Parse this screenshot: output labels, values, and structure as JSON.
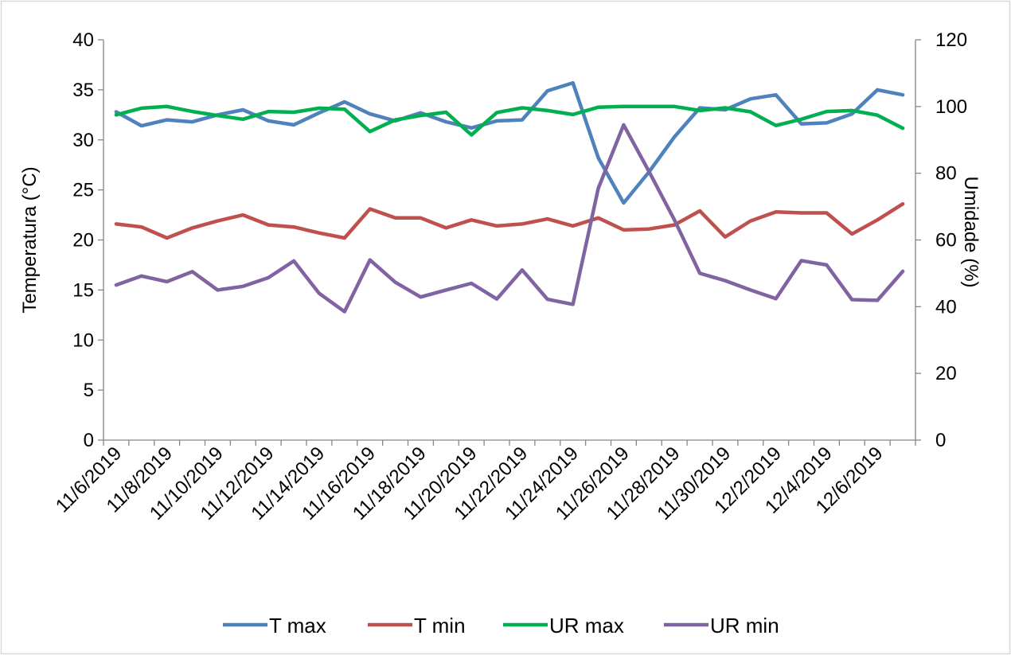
{
  "chart_data": {
    "type": "line",
    "title": "",
    "y_left": {
      "label": "Temperatura (°C)",
      "ylim": [
        0,
        40
      ],
      "ticks": [
        "0",
        "5",
        "10",
        "15",
        "20",
        "25",
        "30",
        "35",
        "40"
      ]
    },
    "y_right": {
      "label": "Umidade (%)",
      "ylim": [
        0,
        120
      ],
      "ticks": [
        "0",
        "20",
        "40",
        "60",
        "80",
        "100",
        "120"
      ]
    },
    "x_tick_labels": [
      "11/6/2019",
      "11/8/2019",
      "11/10/2019",
      "11/12/2019",
      "11/14/2019",
      "11/16/2019",
      "11/18/2019",
      "11/20/2019",
      "11/22/2019",
      "11/24/2019",
      "11/26/2019",
      "11/28/2019",
      "11/30/2019",
      "12/2/2019",
      "12/4/2019",
      "12/6/2019"
    ],
    "x": [
      "11/6/2019",
      "11/7/2019",
      "11/8/2019",
      "11/9/2019",
      "11/10/2019",
      "11/11/2019",
      "11/12/2019",
      "11/13/2019",
      "11/14/2019",
      "11/15/2019",
      "11/16/2019",
      "11/17/2019",
      "11/18/2019",
      "11/19/2019",
      "11/20/2019",
      "11/21/2019",
      "11/22/2019",
      "11/23/2019",
      "11/24/2019",
      "11/25/2019",
      "11/26/2019",
      "11/27/2019",
      "11/28/2019",
      "11/29/2019",
      "11/30/2019",
      "12/1/2019",
      "12/2/2019",
      "12/3/2019",
      "12/4/2019",
      "12/5/2019",
      "12/6/2019",
      "12/7/2019"
    ],
    "grid": false,
    "legend_position": "bottom",
    "series": [
      {
        "name": "T max",
        "axis": "left",
        "color": "#4F81BD",
        "values": [
          32.8,
          31.4,
          32.0,
          31.8,
          32.5,
          33.0,
          31.9,
          31.5,
          32.7,
          33.8,
          32.6,
          31.9,
          32.7,
          31.8,
          31.2,
          31.9,
          32.0,
          34.9,
          35.7,
          28.2,
          23.7,
          26.8,
          30.3,
          33.2,
          33.0,
          34.1,
          34.5,
          31.6,
          31.7,
          32.6,
          35.0,
          34.5
        ]
      },
      {
        "name": "T min",
        "axis": "left",
        "color": "#C0504D",
        "values": [
          21.6,
          21.3,
          20.2,
          21.2,
          21.9,
          22.5,
          21.5,
          21.3,
          20.7,
          20.2,
          23.1,
          22.2,
          22.2,
          21.2,
          22.0,
          21.4,
          21.6,
          22.1,
          21.4,
          22.2,
          21.0,
          21.1,
          21.5,
          22.9,
          20.3,
          21.9,
          22.8,
          22.7,
          22.7,
          20.6,
          22.0,
          23.6
        ]
      },
      {
        "name": "UR max",
        "axis": "right",
        "color": "#00B050",
        "values": [
          97.5,
          99.5,
          100.0,
          98.5,
          97.3,
          96.2,
          98.5,
          98.3,
          99.5,
          99.2,
          92.5,
          96.0,
          97.3,
          98.3,
          91.5,
          98.2,
          99.6,
          98.8,
          97.6,
          99.8,
          100.0,
          100.0,
          100.0,
          98.8,
          99.6,
          98.4,
          94.3,
          96.2,
          98.5,
          98.8,
          97.4,
          93.5
        ]
      },
      {
        "name": "UR min",
        "axis": "right",
        "color": "#8064A2",
        "values": [
          46.5,
          49.2,
          47.5,
          50.5,
          45.0,
          46.1,
          48.7,
          53.7,
          44.0,
          38.5,
          54.0,
          47.3,
          42.9,
          45.0,
          47.0,
          42.3,
          51.0,
          42.2,
          40.7,
          75.5,
          94.5,
          80.5,
          66.0,
          50.0,
          47.8,
          45.0,
          42.4,
          53.8,
          52.5,
          42.1,
          41.9,
          50.6
        ]
      }
    ]
  }
}
